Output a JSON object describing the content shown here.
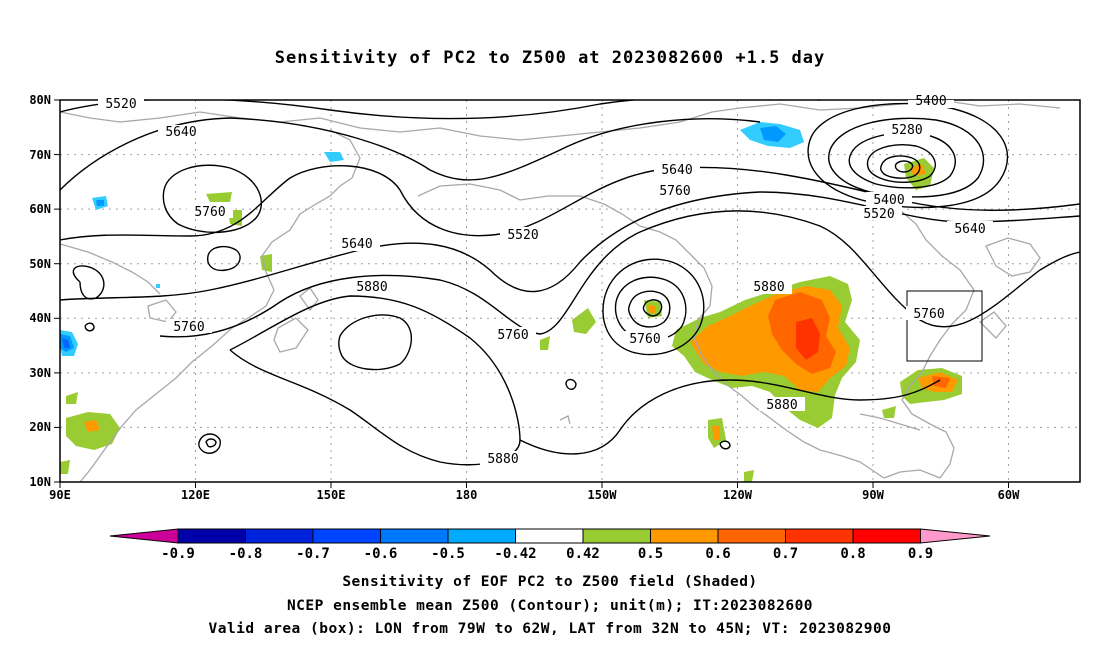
{
  "title": "Sensitivity of PC2 to Z500 at 2023082600 +1.5 day",
  "map": {
    "lat_ticks": [
      "80N",
      "70N",
      "60N",
      "50N",
      "40N",
      "30N",
      "20N",
      "10N"
    ],
    "lon_ticks": [
      "90E",
      "120E",
      "150E",
      "180",
      "150W",
      "120W",
      "90W",
      "60W"
    ],
    "box": {
      "lon_range": [
        "79W",
        "62W"
      ],
      "lat_range": [
        "32N",
        "45N"
      ]
    },
    "contour_labels": [
      "5520",
      "5640",
      "5760",
      "5640",
      "5880",
      "5760",
      "5880",
      "5520",
      "5640",
      "5760",
      "5760",
      "5880",
      "5880",
      "5400",
      "5280",
      "5400",
      "5520",
      "5640",
      "5760",
      "5760"
    ],
    "colors": {
      "contour": "#000000",
      "coast": "#a8a8a8",
      "grid": "#a0a0a0",
      "pos_050": "#99cc33",
      "pos_060": "#ff9900",
      "pos_070": "#ff6600",
      "pos_080": "#ff3300",
      "neg_042": "#33ccff",
      "neg_050": "#0099ff",
      "neg_060": "#0066ff"
    }
  },
  "colorbar": {
    "labels": [
      "-0.9",
      "-0.8",
      "-0.7",
      "-0.6",
      "-0.5",
      "-0.42",
      "0.42",
      "0.5",
      "0.6",
      "0.7",
      "0.8",
      "0.9"
    ],
    "colors": [
      "#cc0099",
      "#0000aa",
      "#0022dd",
      "#0044ff",
      "#0077ff",
      "#00aaff",
      "#00ccff",
      "#ffffff",
      "#99cc33",
      "#ff9900",
      "#ff6600",
      "#ff3300",
      "#ff0000",
      "#ff99cc"
    ]
  },
  "notes": [
    "Sensitivity of EOF PC2 to Z500 field (Shaded)",
    "NCEP ensemble mean Z500 (Contour); unit(m); IT:2023082600",
    "Valid area (box): LON from 79W to 62W, LAT from 32N to 45N; VT: 2023082900"
  ]
}
